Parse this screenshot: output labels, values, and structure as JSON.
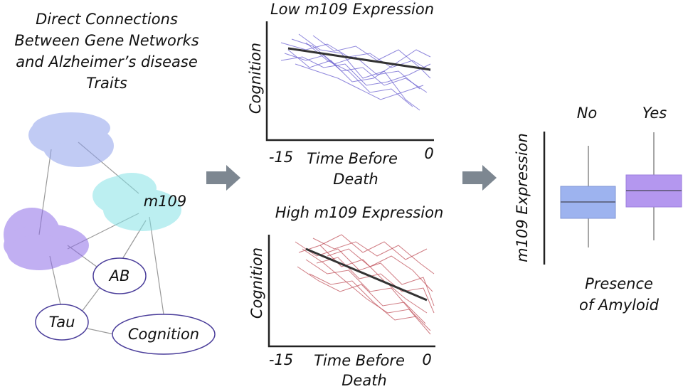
{
  "title": {
    "lines": [
      "Direct Connections",
      "Between Gene Networks",
      "and Alzheimer’s disease",
      "Traits"
    ]
  },
  "network": {
    "nodes": [
      "m109",
      "AB",
      "Tau",
      "Cognition"
    ]
  },
  "panels": [
    {
      "title": "Low m109 Expression",
      "y_label": "Cognition",
      "x_ticks": [
        -15,
        0
      ],
      "x_label": [
        "Time Before",
        "Death"
      ]
    },
    {
      "title": "High m109 Expression",
      "y_label": "Cognition",
      "x_ticks": [
        -15,
        0
      ],
      "x_label": [
        "Time Before",
        "Death"
      ]
    }
  ],
  "boxplot": {
    "y_label": "m109 Expression",
    "categories": [
      "No",
      "Yes"
    ],
    "x_label": [
      "Presence",
      "of Amyloid"
    ]
  }
}
